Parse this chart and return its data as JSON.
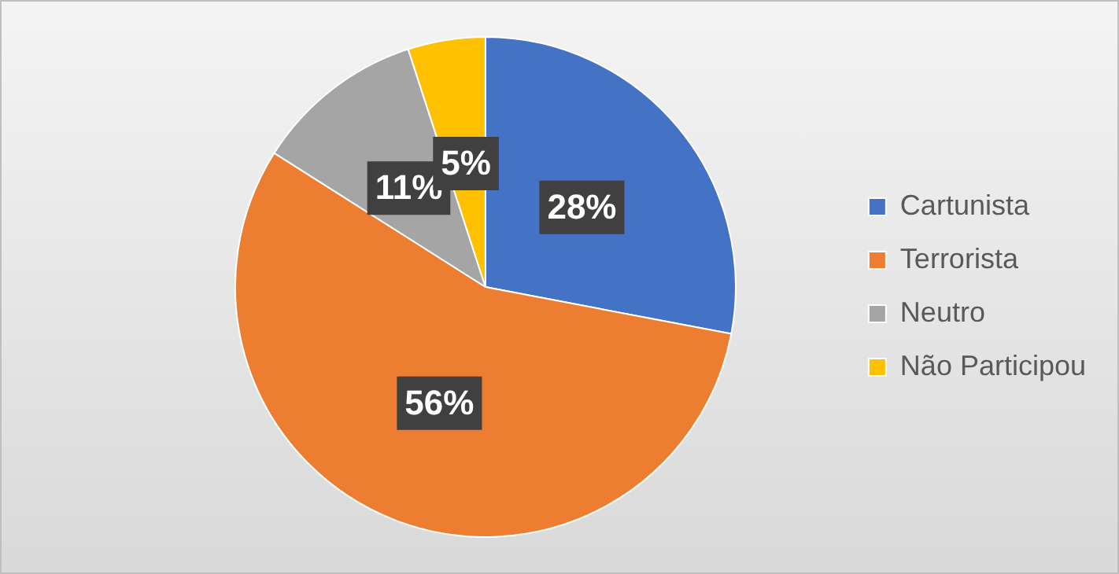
{
  "chart_data": {
    "type": "pie",
    "categories": [
      "Cartunista",
      "Terrorista",
      "Neutro",
      "Não Participou"
    ],
    "values": [
      28,
      56,
      11,
      5
    ],
    "colors": [
      "#4472c4",
      "#ed7d31",
      "#a5a5a5",
      "#ffc000"
    ],
    "value_labels": [
      "28%",
      "56%",
      "11%",
      "5%"
    ],
    "legend": "right"
  }
}
